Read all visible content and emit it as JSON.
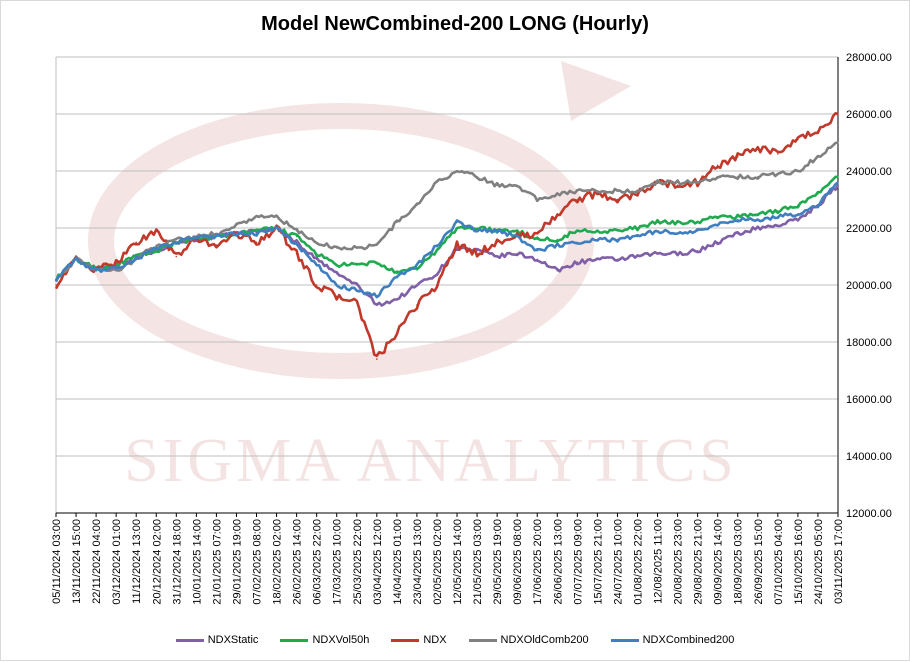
{
  "chart_data": {
    "type": "line",
    "title": "Model NewCombined-200 LONG (Hourly)",
    "watermark": "SIGMA ANALYTICS",
    "xlabel": "",
    "ylabel": "",
    "ylim": [
      12000,
      28000
    ],
    "y_ticks": [
      "12000.00",
      "14000.00",
      "16000.00",
      "18000.00",
      "20000.00",
      "22000.00",
      "24000.00",
      "26000.00",
      "28000.00"
    ],
    "y_tick_values": [
      12000,
      14000,
      16000,
      18000,
      20000,
      22000,
      24000,
      26000,
      28000
    ],
    "categories": [
      "05/11/2024 03:00",
      "13/11/2024 15:00",
      "22/11/2024 04:00",
      "03/12/2024 01:00",
      "11/12/2024 13:00",
      "20/12/2024 02:00",
      "31/12/2024 18:00",
      "10/01/2025 14:00",
      "21/01/2025 07:00",
      "29/01/2025 19:00",
      "07/02/2025 08:00",
      "18/02/2025 02:00",
      "26/02/2025 14:00",
      "06/03/2025 22:00",
      "17/03/2025 10:00",
      "25/03/2025 22:00",
      "03/04/2025 12:00",
      "14/04/2025 01:00",
      "23/04/2025 13:00",
      "02/05/2025 02:00",
      "12/05/2025 14:00",
      "21/05/2025 03:00",
      "29/05/2025 19:00",
      "09/06/2025 08:00",
      "17/06/2025 20:00",
      "26/06/2025 13:00",
      "07/07/2025 09:00",
      "15/07/2025 21:00",
      "24/07/2025 10:00",
      "01/08/2025 22:00",
      "12/08/2025 11:00",
      "20/08/2025 23:00",
      "29/08/2025 21:00",
      "09/09/2025 14:00",
      "18/09/2025 03:00",
      "26/09/2025 15:00",
      "07/10/2025 04:00",
      "15/10/2025 16:00",
      "24/10/2025 05:00",
      "03/11/2025 17:00"
    ],
    "series": [
      {
        "name": "NDXStatic",
        "color": "#7f5fa8",
        "values": [
          20200,
          20900,
          20600,
          20700,
          21000,
          21200,
          21500,
          21600,
          21700,
          21800,
          21900,
          22000,
          21500,
          20900,
          20400,
          20000,
          19300,
          19500,
          20000,
          20400,
          21300,
          21200,
          21000,
          21100,
          20900,
          20500,
          20800,
          20900,
          20900,
          21000,
          21100,
          21100,
          21200,
          21500,
          21800,
          22000,
          22100,
          22300,
          22800,
          23500
        ]
      },
      {
        "name": "NDXVol50h",
        "color": "#1faa4f",
        "values": [
          20200,
          20900,
          20600,
          20700,
          21000,
          21200,
          21500,
          21600,
          21700,
          21800,
          21900,
          22000,
          21700,
          21100,
          20700,
          20700,
          20800,
          20400,
          20600,
          21200,
          22000,
          22000,
          21900,
          21900,
          21600,
          21600,
          21900,
          21900,
          21900,
          22000,
          22200,
          22200,
          22200,
          22400,
          22400,
          22500,
          22600,
          22800,
          23200,
          23800
        ]
      },
      {
        "name": "NDX",
        "color": "#c0392b",
        "values": [
          20000,
          20900,
          20500,
          20800,
          21500,
          21900,
          21000,
          21600,
          21400,
          21800,
          21500,
          22000,
          21100,
          20000,
          19600,
          19400,
          17400,
          18300,
          19300,
          20000,
          21400,
          21100,
          21500,
          21700,
          21800,
          22500,
          23000,
          23200,
          23000,
          23200,
          23600,
          23500,
          23600,
          24200,
          24500,
          24800,
          24600,
          25100,
          25400,
          26000
        ]
      },
      {
        "name": "NDXOldComb200",
        "color": "#808080",
        "values": [
          20200,
          20900,
          20500,
          20500,
          20900,
          21400,
          21600,
          21700,
          21800,
          22100,
          22400,
          22400,
          21900,
          21500,
          21300,
          21300,
          21400,
          22200,
          22800,
          23600,
          24000,
          23800,
          23500,
          23500,
          23000,
          23200,
          23300,
          23300,
          23300,
          23300,
          23600,
          23600,
          23600,
          23800,
          23800,
          23800,
          23900,
          24000,
          24500,
          25000
        ]
      },
      {
        "name": "NDXCombined200",
        "color": "#3f7fbf",
        "values": [
          20200,
          20900,
          20500,
          20600,
          20900,
          21300,
          21500,
          21700,
          21700,
          21800,
          21800,
          22000,
          21400,
          20700,
          20000,
          19800,
          19600,
          20300,
          20700,
          21400,
          22200,
          21900,
          21900,
          21700,
          21200,
          21400,
          21500,
          21600,
          21600,
          21700,
          21900,
          21800,
          21900,
          22100,
          22300,
          22300,
          22400,
          22500,
          22800,
          23600
        ]
      }
    ],
    "grid": true,
    "legend_position": "bottom"
  }
}
